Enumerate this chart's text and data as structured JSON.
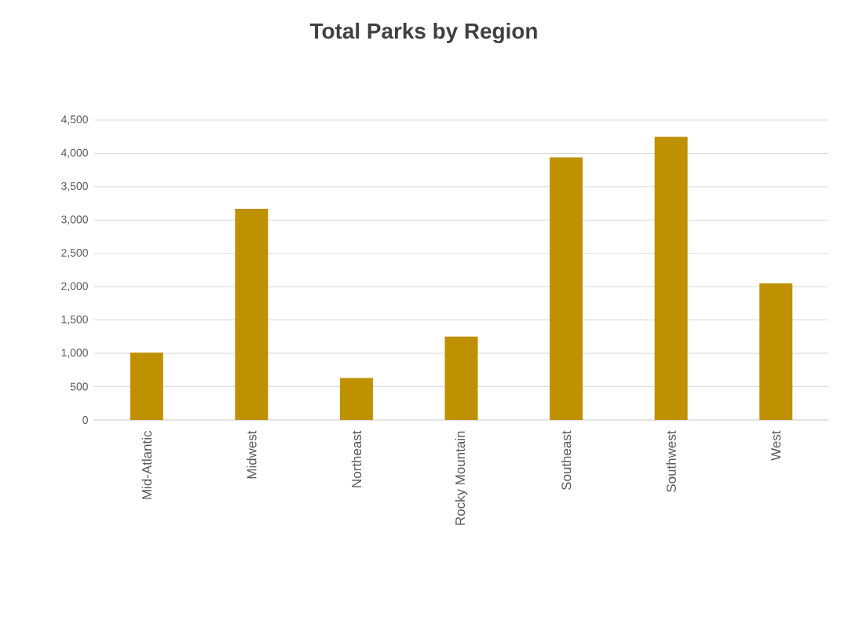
{
  "chart_data": {
    "type": "bar",
    "title": "Total Parks by Region",
    "categories": [
      "Mid-Atlantic",
      "Midwest",
      "Northeast",
      "Rocky Mountain",
      "Southeast",
      "Southwest",
      "West"
    ],
    "values": [
      1010,
      3170,
      630,
      1250,
      3940,
      4250,
      2050
    ],
    "color": "#bf9000",
    "ylim": [
      0,
      4500
    ],
    "yticks": [
      0,
      500,
      {
        "value": 1000,
        "label": "1,000"
      },
      {
        "value": 1500,
        "label": "1,500"
      },
      {
        "value": 2000,
        "label": "2,000"
      },
      {
        "value": 2500,
        "label": "2,500"
      },
      {
        "value": 3000,
        "label": "3,000"
      },
      {
        "value": 3500,
        "label": "3,500"
      },
      {
        "value": 4000,
        "label": "4,000"
      },
      {
        "value": 4500,
        "label": "4,500"
      }
    ],
    "grid": "y"
  }
}
